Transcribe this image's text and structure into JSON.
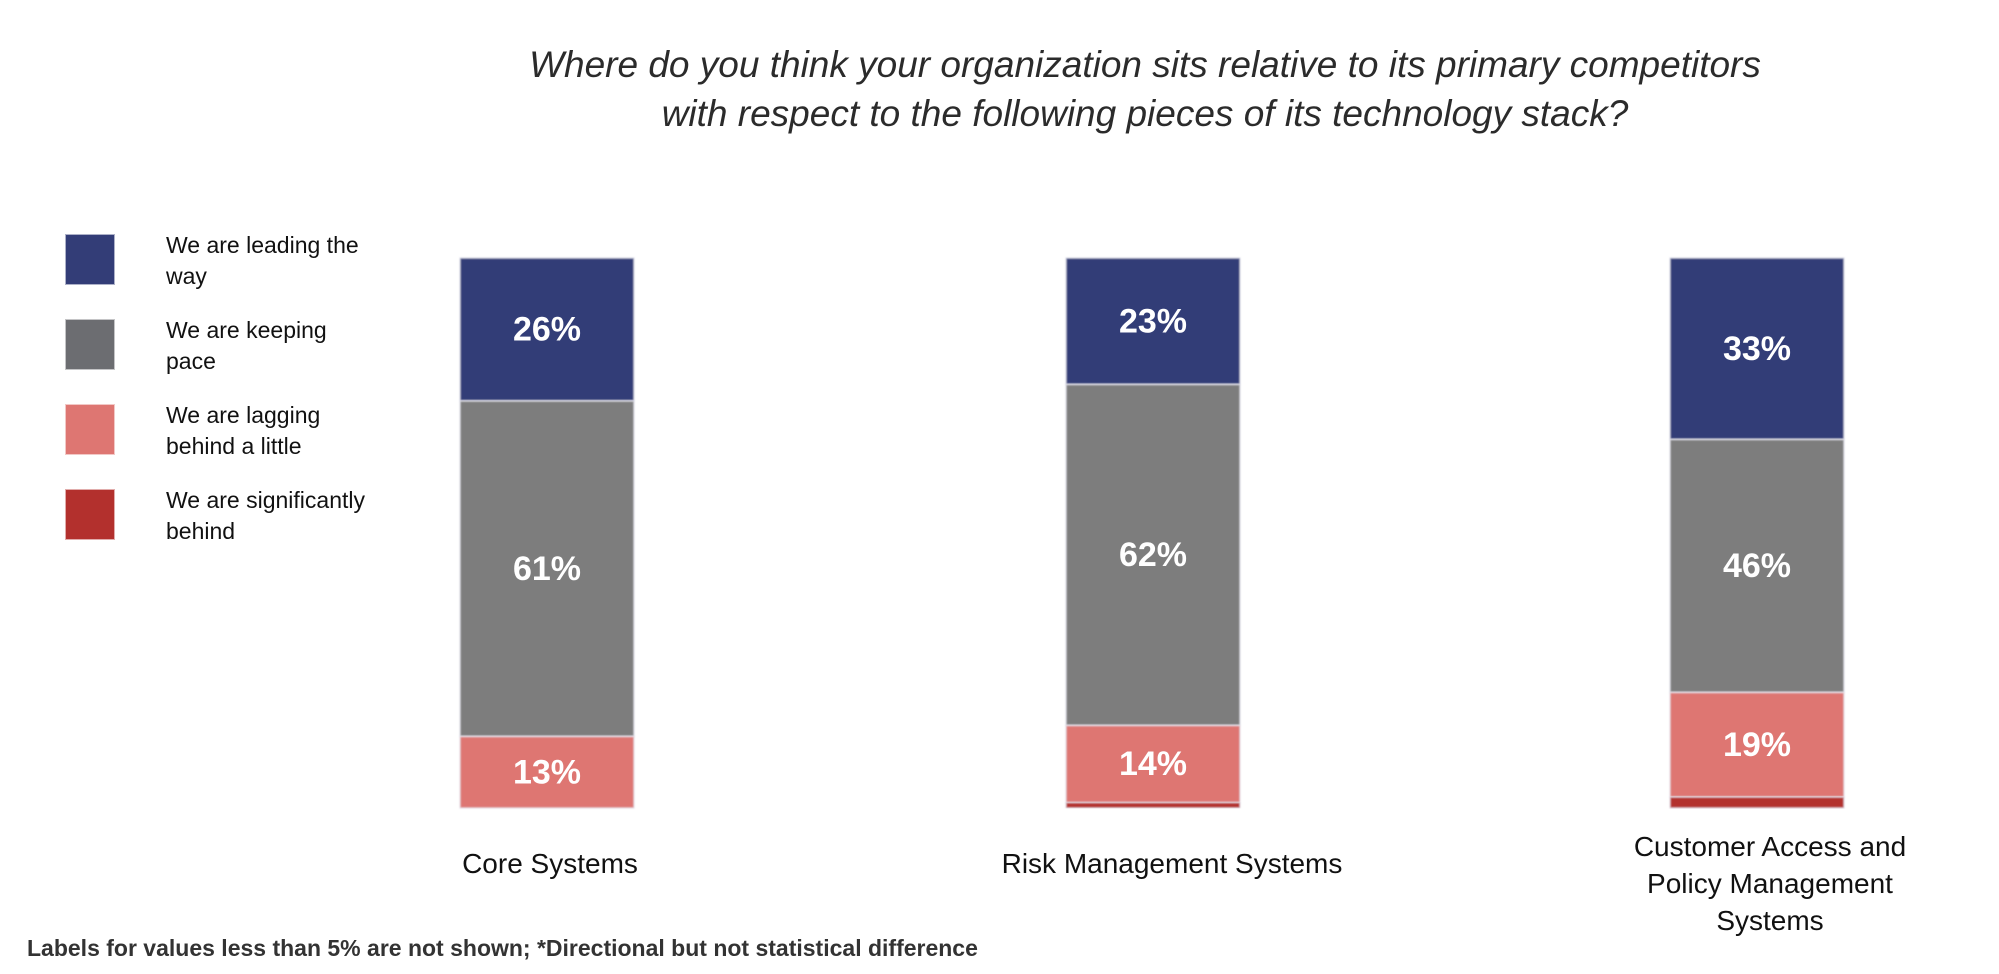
{
  "title_lines": [
    "Where do you think your organization sits relative to its primary competitors",
    "with respect to the following pieces of its technology stack?"
  ],
  "footnote": "Labels for values less than 5% are not shown; *Directional but not statistical difference",
  "chart_data": {
    "type": "bar",
    "stacked": true,
    "orientation": "vertical",
    "title": "Where do you think your organization sits relative to its primary competitors with respect to the following pieces of its technology stack?",
    "xlabel": "",
    "ylabel": "",
    "ylim": [
      0,
      100
    ],
    "unit": "%",
    "grid": false,
    "legend_position": "left",
    "label_threshold": 5,
    "categories": [
      "Core Systems",
      "Risk Management Systems",
      "Customer Access and Policy Management Systems"
    ],
    "category_label_lines": [
      [
        "Core Systems"
      ],
      [
        "Risk Management Systems"
      ],
      [
        "Customer Access and",
        "Policy Management",
        "Systems"
      ]
    ],
    "series": [
      {
        "name": "We are leading the way",
        "legend_lines": [
          "We are leading the",
          "way"
        ],
        "color": "#333d77",
        "values": [
          26,
          23,
          33
        ]
      },
      {
        "name": "We are keeping pace",
        "legend_lines": [
          "We are keeping",
          "pace"
        ],
        "color": "#7d7d7d",
        "values": [
          61,
          62,
          46
        ]
      },
      {
        "name": "We are lagging behind a little",
        "legend_lines": [
          "We are lagging",
          "behind a little"
        ],
        "color": "#de7672",
        "values": [
          13,
          14,
          19
        ]
      },
      {
        "name": "We are significantly behind",
        "legend_lines": [
          "We are significantly",
          "behind"
        ],
        "color": "#b3302d",
        "values": [
          0,
          1,
          2
        ]
      }
    ],
    "legend_swatch_colors": [
      "#333d77",
      "#6c6d71",
      "#de7672",
      "#b3302d"
    ]
  }
}
